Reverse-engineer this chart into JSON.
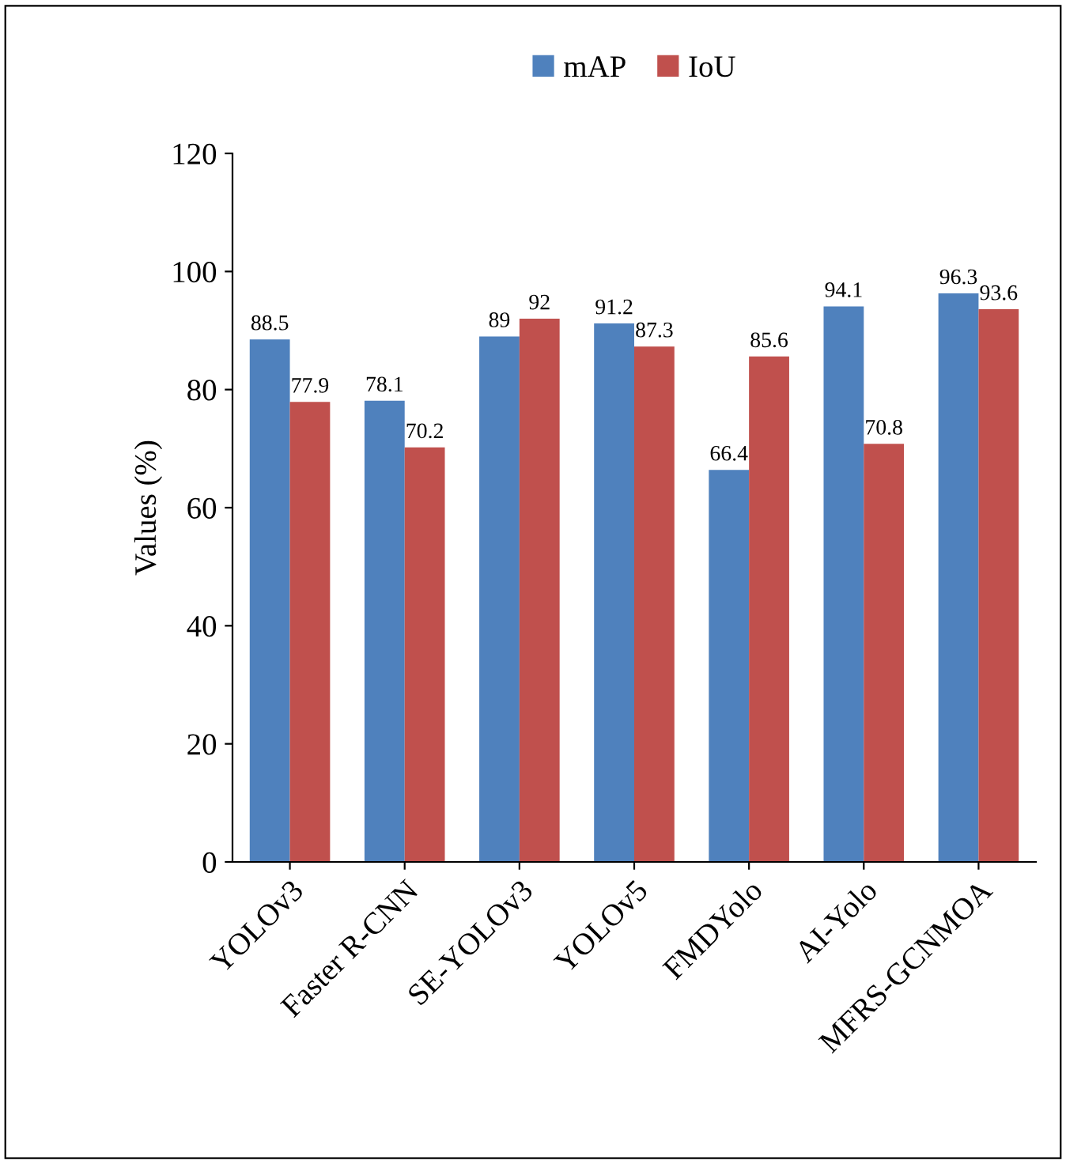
{
  "chart_data": {
    "type": "bar",
    "ylabel": "Values (%)",
    "categories": [
      "YOLOv3",
      "Faster R-CNN",
      "SE-YOLOv3",
      "YOLOv5",
      "FMDYolo",
      "AI-Yolo",
      "MFRS-GCNMOA"
    ],
    "series": [
      {
        "name": "mAP",
        "color": "#4f81bd",
        "values": [
          88.5,
          78.1,
          89,
          91.2,
          66.4,
          94.1,
          96.3
        ]
      },
      {
        "name": "IoU",
        "color": "#c0504d",
        "values": [
          77.9,
          70.2,
          92,
          87.3,
          85.6,
          70.8,
          93.6
        ]
      }
    ],
    "ylim": [
      0,
      120
    ],
    "yticks": [
      0,
      20,
      40,
      60,
      80,
      100,
      120
    ],
    "grid": false,
    "legend": "top",
    "data_labels": true
  }
}
